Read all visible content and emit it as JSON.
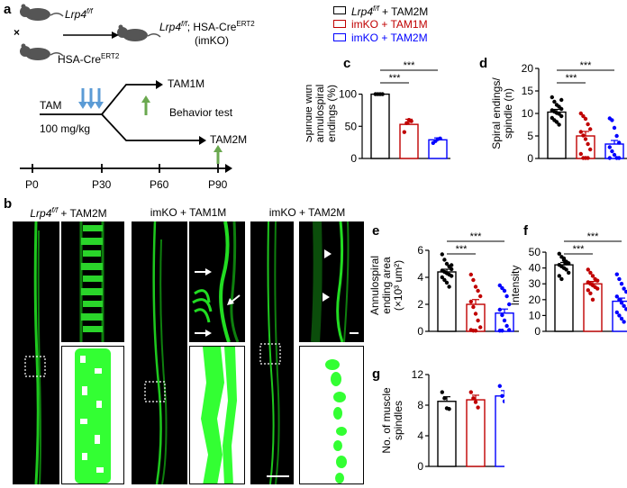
{
  "panel_a": {
    "label": "a",
    "parent1_gene": "Lrp4",
    "parent1_sup": "f/f",
    "cross": "×",
    "parent2_name": "HSA-Cre",
    "parent2_sup": "ERT2",
    "offspring_gene": "Lrp4",
    "offspring_sup": "f/f",
    "offspring_rest": "; HSA-Cre",
    "offspring_sup2": "ERT2",
    "offspring_abbrev": "(imKO)",
    "tam": "TAM",
    "dose": "100 mg/kg",
    "tam1m": "TAM1M",
    "tam2m": "TAM2M",
    "behavior": "Behavior test",
    "ticks": [
      "P0",
      "P30",
      "P60",
      "P90"
    ],
    "colors": {
      "injection": "#5b9bd5",
      "test": "#6aa84f"
    }
  },
  "legend": {
    "items": [
      {
        "gene": "Lrp4",
        "sup": "f/f",
        "rest": " + TAM2M",
        "color": "#000000"
      },
      {
        "gene": "",
        "sup": "",
        "rest": "imKO + TAM1M",
        "color": "#c00000"
      },
      {
        "gene": "",
        "sup": "",
        "rest": "imKO + TAM2M",
        "color": "#0000ff"
      }
    ]
  },
  "panel_b": {
    "label": "b",
    "groups": [
      {
        "gene": "Lrp4",
        "sup": "f/f",
        "rest": " + TAM2M"
      },
      {
        "gene": "",
        "sup": "",
        "rest": "imKO + TAM1M"
      },
      {
        "gene": "",
        "sup": "",
        "rest": "imKO + TAM2M"
      }
    ],
    "colors": {
      "signal": "#22dd22",
      "background": "#000000",
      "segmentation": "#33ff33"
    }
  },
  "chart_data": [
    {
      "panel": "c",
      "type": "bar",
      "ylabel": "Spindle with\nannulospiral\nendings (%)",
      "yticks": [
        0,
        50,
        100
      ],
      "ylim": [
        0,
        140
      ],
      "categories": [
        "Lrp4f/f + TAM2M",
        "imKO + TAM1M",
        "imKO + TAM2M"
      ],
      "values": [
        100,
        53,
        29
      ],
      "errors": [
        0,
        8,
        3
      ],
      "points": [
        [
          100,
          100,
          100,
          100
        ],
        [
          41,
          55,
          60,
          58
        ],
        [
          24,
          27,
          30,
          31
        ]
      ],
      "colors": [
        "#000000",
        "#c00000",
        "#0000ff"
      ],
      "sig": [
        {
          "a": 0,
          "b": 1,
          "label": "***"
        },
        {
          "a": 0,
          "b": 2,
          "label": "***"
        }
      ]
    },
    {
      "panel": "d",
      "type": "bar",
      "ylabel": "Spiral endings/\nspindle (n)",
      "yticks": [
        0,
        5,
        10,
        15,
        20
      ],
      "ylim": [
        0,
        20
      ],
      "categories": [
        "Lrp4f/f + TAM2M",
        "imKO + TAM1M",
        "imKO + TAM2M"
      ],
      "values": [
        10.3,
        5.0,
        3.2
      ],
      "errors": [
        0.6,
        1.0,
        0.8
      ],
      "points": [
        [
          13.6,
          12.6,
          11.9,
          11.5,
          11.0,
          10.7,
          10.4,
          10.1,
          9.9,
          9.4,
          9.0,
          8.5,
          8.1,
          7.5,
          13.0
        ],
        [
          10.0,
          9.4,
          8.8,
          7.6,
          6.5,
          5.9,
          5.1,
          4.3,
          3.2,
          2.0,
          1.0,
          0.1,
          0.1,
          0.1
        ],
        [
          8.9,
          8.5,
          6.8,
          5.0,
          3.5,
          2.5,
          1.6,
          0.8,
          0.1,
          0.1,
          0.1
        ]
      ],
      "colors": [
        "#000000",
        "#c00000",
        "#0000ff"
      ],
      "sig": [
        {
          "a": 0,
          "b": 1,
          "label": "***"
        },
        {
          "a": 0,
          "b": 2,
          "label": "***"
        }
      ]
    },
    {
      "panel": "e",
      "type": "bar",
      "ylabel": "Annulospiral\nending area\n(×10³ um²)",
      "yticks": [
        0,
        2,
        4,
        6
      ],
      "ylim": [
        0,
        6.8
      ],
      "categories": [
        "Lrp4f/f + TAM2M",
        "imKO + TAM1M",
        "imKO + TAM2M"
      ],
      "values": [
        4.4,
        2.0,
        1.35
      ],
      "errors": [
        0.2,
        0.35,
        0.3
      ],
      "points": [
        [
          5.7,
          5.3,
          5.0,
          4.8,
          4.6,
          4.5,
          4.4,
          4.3,
          4.2,
          4.1,
          4.0,
          3.8,
          3.6,
          3.3,
          4.9
        ],
        [
          4.2,
          3.8,
          3.3,
          3.0,
          2.6,
          2.2,
          1.8,
          1.3,
          0.8,
          0.3,
          0.1,
          0.05,
          0.05
        ],
        [
          3.4,
          3.2,
          3.0,
          2.6,
          2.0,
          1.6,
          1.2,
          0.8,
          0.4,
          0.1,
          0.05,
          0.05
        ]
      ],
      "colors": [
        "#000000",
        "#c00000",
        "#0000ff"
      ],
      "sig": [
        {
          "a": 0,
          "b": 1,
          "label": "***"
        },
        {
          "a": 0,
          "b": 2,
          "label": "***"
        }
      ]
    },
    {
      "panel": "f",
      "type": "bar",
      "ylabel": "Intensity",
      "yticks": [
        0,
        10,
        20,
        30,
        40,
        50
      ],
      "ylim": [
        0,
        58
      ],
      "categories": [
        "Lrp4f/f + TAM2M",
        "imKO + TAM1M",
        "imKO + TAM2M"
      ],
      "values": [
        42,
        30,
        19
      ],
      "errors": [
        1.5,
        1.5,
        2
      ],
      "points": [
        [
          49,
          47,
          45,
          44,
          43,
          42,
          41,
          40,
          39,
          37,
          35,
          33,
          46,
          43
        ],
        [
          39,
          37,
          35,
          33,
          32,
          31,
          30,
          29,
          28,
          27,
          26,
          24,
          20
        ],
        [
          36,
          33,
          30,
          27,
          25,
          22,
          20,
          18,
          16,
          14,
          12,
          10,
          8,
          6
        ]
      ],
      "colors": [
        "#000000",
        "#c00000",
        "#0000ff"
      ],
      "sig": [
        {
          "a": 0,
          "b": 1,
          "label": "***"
        },
        {
          "a": 0,
          "b": 2,
          "label": "***"
        }
      ]
    },
    {
      "panel": "g",
      "type": "bar",
      "ylabel": "No. of muscle\nspindles",
      "yticks": [
        0,
        4,
        8,
        12
      ],
      "ylim": [
        0,
        12
      ],
      "categories": [
        "Lrp4f/f + TAM2M",
        "imKO + TAM1M",
        "imKO + TAM2M"
      ],
      "values": [
        8.5,
        8.7,
        9.2
      ],
      "errors": [
        0.6,
        0.6,
        0.7
      ],
      "points": [
        [
          9.7,
          8.9,
          7.6,
          7.5
        ],
        [
          9.7,
          8.9,
          8.4,
          7.7
        ],
        [
          10.5,
          9.2,
          8.5,
          8.2
        ]
      ],
      "colors": [
        "#000000",
        "#c00000",
        "#0000ff"
      ],
      "sig": []
    }
  ]
}
